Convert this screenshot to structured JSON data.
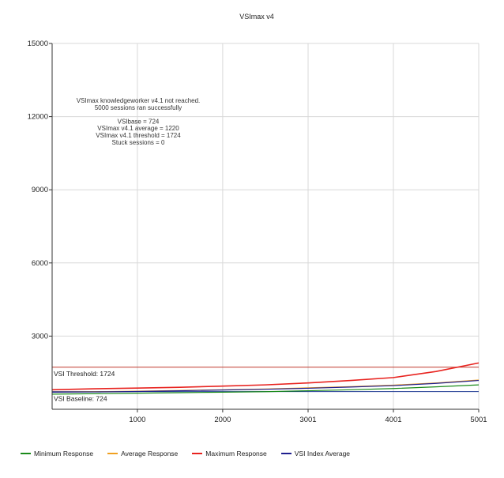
{
  "chart_data": {
    "type": "line",
    "title": "VSImax v4",
    "ylim": [
      0,
      15000
    ],
    "xlim": [
      1,
      5001
    ],
    "x_ticks": [
      "1000",
      "2000",
      "3001",
      "4001",
      "5001"
    ],
    "y_ticks": [
      "3000",
      "6000",
      "9000",
      "12000",
      "15000"
    ],
    "annotation": [
      "VSImax knowledgeworker v4.1 not reached.",
      "5000 sessions ran successfully",
      "",
      "VSIbase = 724",
      "VSImax v4.1 average = 1220",
      "VSImax v4.1 threshold = 1724",
      "Stuck sessions = 0"
    ],
    "reference_lines": {
      "threshold": {
        "label": "VSI Threshold: 1724",
        "value": 1724,
        "color": "#c0392b"
      },
      "baseline": {
        "label": "VSI Baseline: 724",
        "value": 724,
        "color": "#1f3a93"
      }
    },
    "series": [
      {
        "name": "Minimum Response",
        "color": "#1a8a1a",
        "x": [
          1,
          500,
          1000,
          1500,
          2000,
          2500,
          3001,
          3500,
          4001,
          4500,
          5001
        ],
        "y": [
          620,
          640,
          660,
          680,
          700,
          720,
          760,
          800,
          850,
          920,
          1000
        ]
      },
      {
        "name": "Average Response",
        "color": "#f0a020",
        "x": [
          1,
          500,
          1000,
          1500,
          2000,
          2500,
          3001,
          3500,
          4001,
          4500,
          5001
        ],
        "y": [
          700,
          720,
          740,
          770,
          800,
          830,
          880,
          930,
          990,
          1080,
          1200
        ]
      },
      {
        "name": "Maximum Response",
        "color": "#e8231f",
        "x": [
          1,
          500,
          1000,
          1500,
          2000,
          2500,
          3001,
          3500,
          4001,
          4500,
          5001
        ],
        "y": [
          800,
          840,
          870,
          900,
          950,
          1000,
          1080,
          1180,
          1300,
          1550,
          1900
        ]
      },
      {
        "name": "VSI Index Average",
        "color": "#1f1f8f",
        "x": [
          1,
          500,
          1000,
          1500,
          2000,
          2500,
          3001,
          3500,
          4001,
          4500,
          5001
        ],
        "y": [
          700,
          710,
          730,
          760,
          790,
          820,
          860,
          910,
          970,
          1060,
          1180
        ]
      }
    ],
    "grid": true,
    "legend_position": "bottom"
  }
}
